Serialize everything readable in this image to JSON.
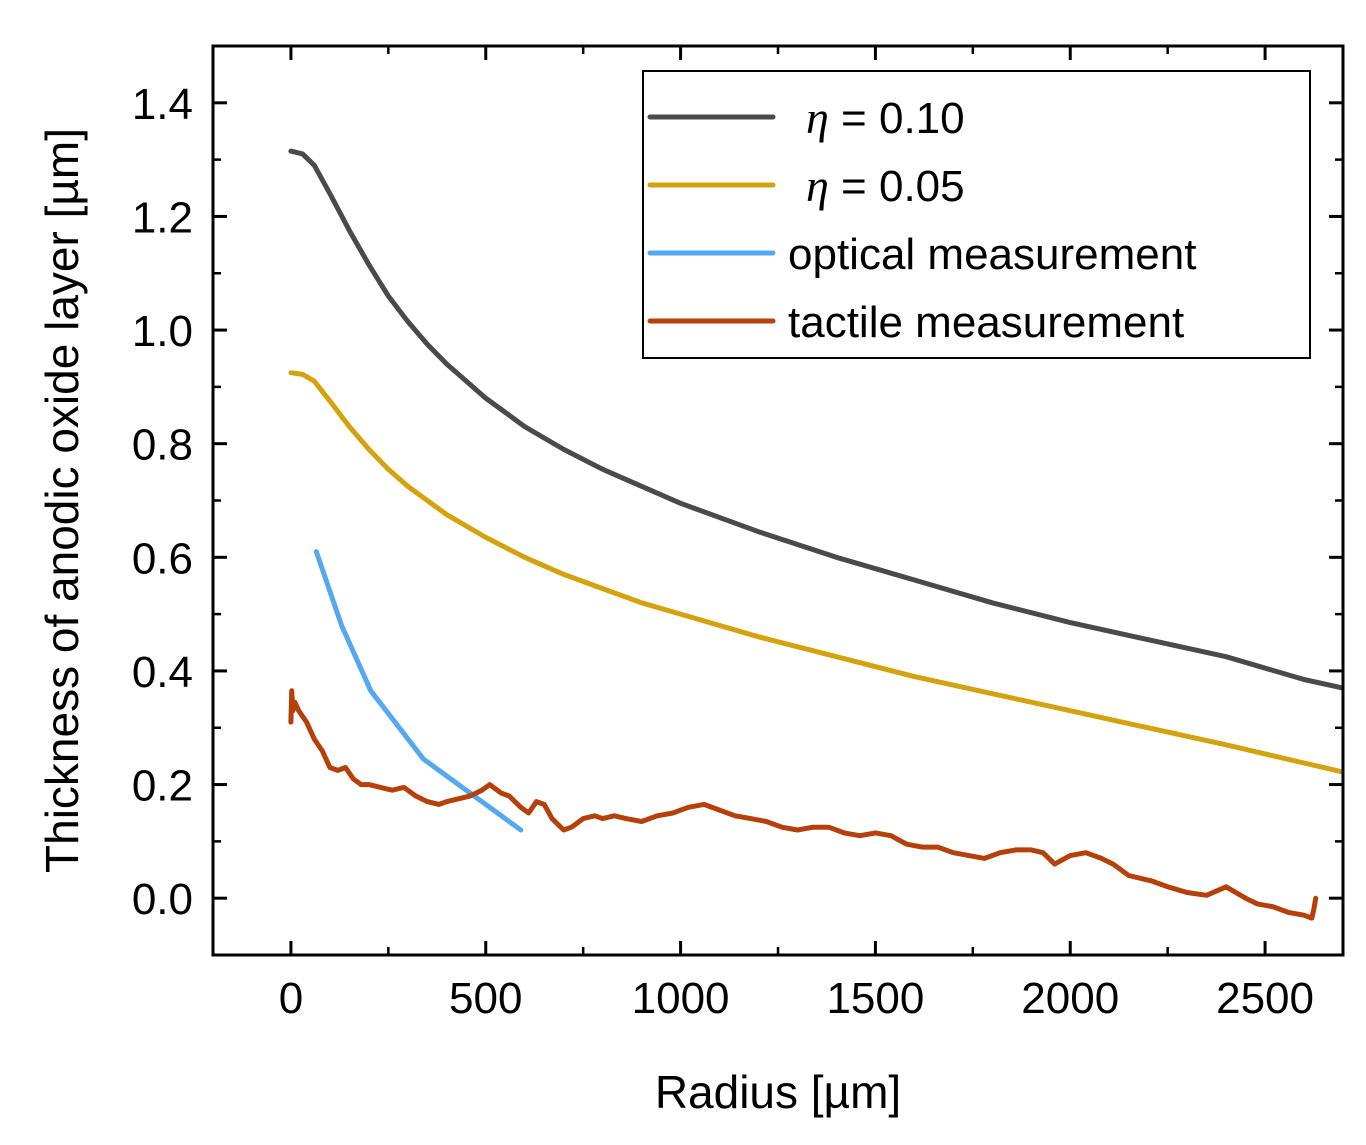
{
  "chart_data": {
    "type": "line",
    "title": "",
    "xlabel": "Radius [µm]",
    "ylabel": "Thickness of anodic oxide layer [µm]",
    "xlim": [
      -200,
      2700
    ],
    "ylim": [
      -0.1,
      1.5
    ],
    "xticks": [
      0,
      500,
      1000,
      1500,
      2000,
      2500
    ],
    "yticks": [
      0.0,
      0.2,
      0.4,
      0.6,
      0.8,
      1.0,
      1.2,
      1.4
    ],
    "xtick_labels": [
      "0",
      "500",
      "1000",
      "1500",
      "2000",
      "2500"
    ],
    "ytick_labels": [
      "0.0",
      "0.2",
      "0.4",
      "0.6",
      "0.8",
      "1.0",
      "1.2",
      "1.4"
    ],
    "grid": false,
    "legend_position": "top-right",
    "series": [
      {
        "name": "η = 0.10",
        "legend_prefix": "η",
        "legend_suffix": " = 0.10",
        "color": "#4a4a4a",
        "x": [
          0,
          30,
          60,
          100,
          150,
          200,
          250,
          300,
          350,
          400,
          500,
          600,
          700,
          800,
          900,
          1000,
          1200,
          1400,
          1600,
          1800,
          2000,
          2200,
          2400,
          2600,
          2700
        ],
        "y": [
          1.315,
          1.31,
          1.29,
          1.24,
          1.175,
          1.115,
          1.06,
          1.015,
          0.975,
          0.94,
          0.88,
          0.83,
          0.79,
          0.755,
          0.725,
          0.695,
          0.645,
          0.6,
          0.56,
          0.52,
          0.485,
          0.455,
          0.425,
          0.385,
          0.37
        ]
      },
      {
        "name": "η = 0.05",
        "legend_prefix": "η",
        "legend_suffix": " = 0.05",
        "color": "#d4a20c",
        "x": [
          0,
          30,
          60,
          100,
          150,
          200,
          250,
          300,
          350,
          400,
          500,
          600,
          700,
          800,
          900,
          1000,
          1200,
          1400,
          1600,
          1800,
          2000,
          2200,
          2400,
          2600,
          2700
        ],
        "y": [
          0.925,
          0.922,
          0.91,
          0.875,
          0.83,
          0.79,
          0.755,
          0.725,
          0.7,
          0.675,
          0.635,
          0.6,
          0.57,
          0.545,
          0.52,
          0.5,
          0.46,
          0.425,
          0.39,
          0.36,
          0.33,
          0.3,
          0.27,
          0.238,
          0.222
        ]
      },
      {
        "name": "optical measurement",
        "legend_prefix": "",
        "legend_suffix": "optical measurement",
        "color": "#55a8f0",
        "x": [
          65,
          130,
          205,
          340,
          460,
          590
        ],
        "y": [
          0.61,
          0.48,
          0.365,
          0.245,
          0.185,
          0.12
        ]
      },
      {
        "name": "tactile measurement",
        "legend_prefix": "",
        "legend_suffix": "tactile measurement",
        "color": "#b5400a",
        "x": [
          0,
          2,
          5,
          10,
          20,
          40,
          60,
          80,
          100,
          120,
          140,
          160,
          180,
          200,
          230,
          260,
          290,
          320,
          350,
          380,
          400,
          430,
          460,
          490,
          510,
          540,
          560,
          590,
          610,
          630,
          650,
          670,
          700,
          720,
          750,
          780,
          800,
          830,
          860,
          900,
          940,
          980,
          1020,
          1060,
          1100,
          1140,
          1180,
          1220,
          1260,
          1300,
          1340,
          1380,
          1420,
          1460,
          1500,
          1540,
          1580,
          1620,
          1660,
          1700,
          1740,
          1780,
          1820,
          1860,
          1900,
          1930,
          1960,
          2000,
          2040,
          2080,
          2110,
          2150,
          2180,
          2210,
          2250,
          2300,
          2350,
          2400,
          2450,
          2480,
          2520,
          2560,
          2600,
          2620,
          2625,
          2630
        ],
        "y": [
          0.31,
          0.365,
          0.33,
          0.345,
          0.33,
          0.31,
          0.28,
          0.26,
          0.23,
          0.225,
          0.23,
          0.21,
          0.2,
          0.2,
          0.195,
          0.19,
          0.195,
          0.18,
          0.17,
          0.165,
          0.17,
          0.175,
          0.18,
          0.19,
          0.2,
          0.185,
          0.18,
          0.16,
          0.15,
          0.17,
          0.165,
          0.14,
          0.12,
          0.125,
          0.14,
          0.145,
          0.14,
          0.145,
          0.14,
          0.135,
          0.145,
          0.15,
          0.16,
          0.165,
          0.155,
          0.145,
          0.14,
          0.135,
          0.125,
          0.12,
          0.125,
          0.125,
          0.115,
          0.11,
          0.115,
          0.11,
          0.095,
          0.09,
          0.09,
          0.08,
          0.075,
          0.07,
          0.08,
          0.085,
          0.085,
          0.08,
          0.06,
          0.075,
          0.08,
          0.07,
          0.06,
          0.04,
          0.035,
          0.03,
          0.02,
          0.01,
          0.005,
          0.02,
          0.0,
          -0.01,
          -0.015,
          -0.025,
          -0.03,
          -0.035,
          -0.02,
          0.0
        ]
      }
    ]
  }
}
